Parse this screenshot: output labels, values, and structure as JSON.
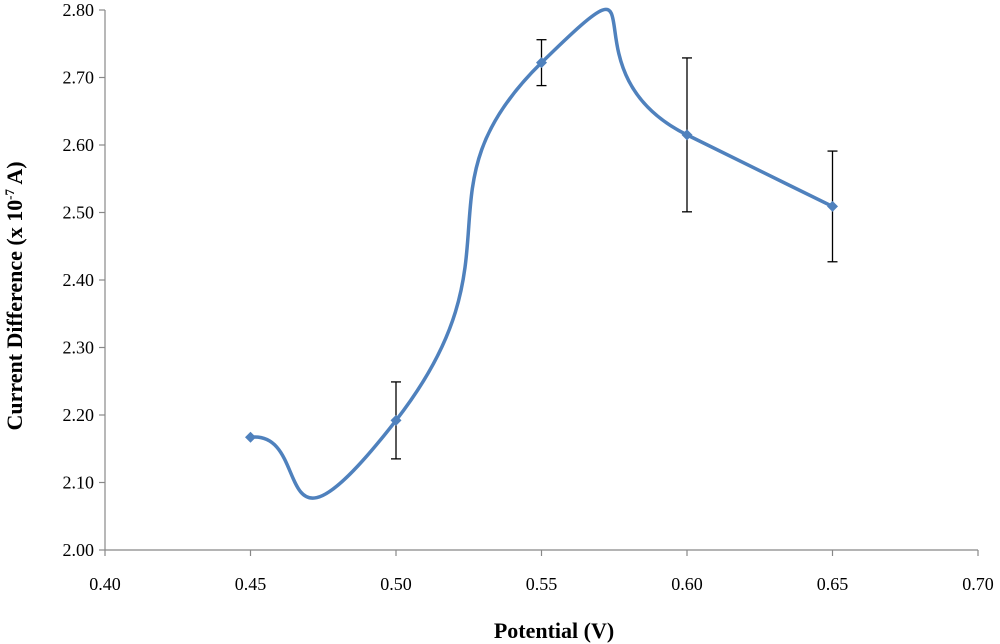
{
  "chart_data": {
    "type": "scatter",
    "title": "",
    "xlabel": "Potential (V)",
    "ylabel_main": "Current Difference (x 10",
    "ylabel_sup": "-7",
    "ylabel_unit": " A)",
    "xlim": [
      0.4,
      0.7
    ],
    "ylim": [
      2.0,
      2.8
    ],
    "x_ticks": [
      "0.40",
      "0.45",
      "0.50",
      "0.55",
      "0.60",
      "0.65",
      "0.70"
    ],
    "y_ticks": [
      "2.00",
      "2.10",
      "2.20",
      "2.30",
      "2.40",
      "2.50",
      "2.60",
      "2.70",
      "2.80"
    ],
    "grid": false,
    "legend": "none",
    "smooth_line": true,
    "line_color": "#4F81BD",
    "series": [
      {
        "x": [
          0.45,
          0.5,
          0.55,
          0.6,
          0.65
        ],
        "y": [
          2.167,
          2.192,
          2.722,
          2.615,
          2.509
        ],
        "error": [
          0,
          0.057,
          0.034,
          0.114,
          0.082
        ]
      }
    ]
  }
}
